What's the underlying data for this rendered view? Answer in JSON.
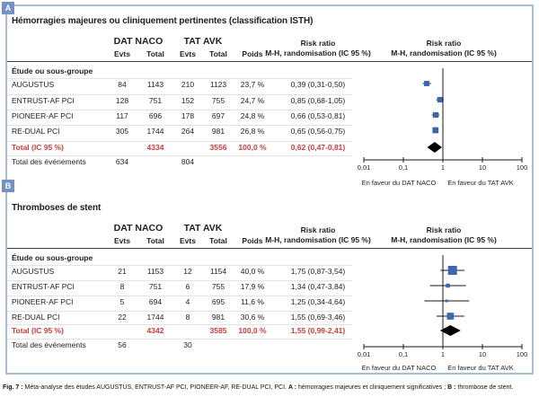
{
  "colors": {
    "accent_red": "#d13b3b",
    "marker_blue": "#3b67b0",
    "frame_blue": "#a9bdd9",
    "badge_blue": "#7391c2",
    "line_black": "#1a1a1a"
  },
  "caption": {
    "fig_label": "Fig. 7 :",
    "intro": "Méta-analyse des études AUGUSTUS, ENTRUST-AF PCI, PIONEER-AF, RE-DUAL PCI, PCI.",
    "a_label": "A :",
    "a_text": "hémorragies majeures et cliniquement significatives ;",
    "b_label": "B :",
    "b_text": "thrombose de stent."
  },
  "chart_data": [
    {
      "type": "forest",
      "badge": "A",
      "title": "Hémorragies majeures ou cliniquement pertinentes (classification ISTH)",
      "columns": {
        "group1": "DAT NACO",
        "group2": "TAT AVK",
        "evts": "Evts",
        "total": "Total",
        "weight": "Poids",
        "rr_line1": "Risk ratio",
        "rr_line2": "M-H, randomisation (IC 95 %)"
      },
      "row_header": "Étude ou sous-groupe",
      "studies": [
        {
          "name": "AUGUSTUS",
          "e1": "84",
          "n1": "1143",
          "e2": "210",
          "n2": "1123",
          "weight": 23.7,
          "weight_label": "23,7 %",
          "rr_label": "0,39 (0,31-0,50)",
          "rr": 0.39,
          "lo": 0.31,
          "hi": 0.5
        },
        {
          "name": "ENTRUST-AF PCI",
          "e1": "128",
          "n1": "751",
          "e2": "152",
          "n2": "755",
          "weight": 24.7,
          "weight_label": "24,7 %",
          "rr_label": "0,85 (0,68-1,05)",
          "rr": 0.85,
          "lo": 0.68,
          "hi": 1.05
        },
        {
          "name": "PIONEER-AF PCI",
          "e1": "117",
          "n1": "696",
          "e2": "178",
          "n2": "697",
          "weight": 24.8,
          "weight_label": "24,8 %",
          "rr_label": "0,66 (0,53-0,81)",
          "rr": 0.66,
          "lo": 0.53,
          "hi": 0.81
        },
        {
          "name": "RE-DUAL PCI",
          "e1": "305",
          "n1": "1744",
          "e2": "264",
          "n2": "981",
          "weight": 26.8,
          "weight_label": "26,8 %",
          "rr_label": "0,65 (0,56-0,75)",
          "rr": 0.65,
          "lo": 0.56,
          "hi": 0.75
        }
      ],
      "total": {
        "label": "Total (IC 95 %)",
        "n1": "4334",
        "n2": "3556",
        "weight_label": "100,0 %",
        "rr_label": "0,62 (0,47-0,81)",
        "rr": 0.62,
        "lo": 0.47,
        "hi": 0.81
      },
      "events": {
        "label": "Total des événements",
        "e1": "634",
        "e2": "804"
      },
      "axis": {
        "scale": "log",
        "range": [
          0.01,
          100
        ],
        "ticks": [
          {
            "label": "0,01",
            "value": 0.01
          },
          {
            "label": "0,1",
            "value": 0.1
          },
          {
            "label": "1",
            "value": 1
          },
          {
            "label": "10",
            "value": 10
          },
          {
            "label": "100",
            "value": 100
          }
        ],
        "left_label": "En faveur du DAT NACO",
        "right_label": "En faveur du TAT AVK"
      }
    },
    {
      "type": "forest",
      "badge": "B",
      "title": "Thromboses de stent",
      "columns": {
        "group1": "DAT NACO",
        "group2": "TAT AVK",
        "evts": "Evts",
        "total": "Total",
        "weight": "Poids",
        "rr_line1": "Risk ratio",
        "rr_line2": "M-H, randomisation (IC 95 %)"
      },
      "row_header": "Étude ou sous-groupe",
      "studies": [
        {
          "name": "AUGUSTUS",
          "e1": "21",
          "n1": "1153",
          "e2": "12",
          "n2": "1154",
          "weight": 40.0,
          "weight_label": "40,0 %",
          "rr_label": "1,75 (0,87-3,54)",
          "rr": 1.75,
          "lo": 0.87,
          "hi": 3.54
        },
        {
          "name": "ENTRUST-AF PCI",
          "e1": "8",
          "n1": "751",
          "e2": "6",
          "n2": "755",
          "weight": 17.9,
          "weight_label": "17,9 %",
          "rr_label": "1,34 (0,47-3,84)",
          "rr": 1.34,
          "lo": 0.47,
          "hi": 3.84
        },
        {
          "name": "PIONEER-AF PCI",
          "e1": "5",
          "n1": "694",
          "e2": "4",
          "n2": "695",
          "weight": 11.6,
          "weight_label": "11,6 %",
          "rr_label": "1,25 (0,34-4,64)",
          "rr": 1.25,
          "lo": 0.34,
          "hi": 4.64
        },
        {
          "name": "RE-DUAL PCI",
          "e1": "22",
          "n1": "1744",
          "e2": "8",
          "n2": "981",
          "weight": 30.6,
          "weight_label": "30,6 %",
          "rr_label": "1,55 (0,69-3,46)",
          "rr": 1.55,
          "lo": 0.69,
          "hi": 3.46
        }
      ],
      "total": {
        "label": "Total (IC 95 %)",
        "n1": "4342",
        "n2": "3585",
        "weight_label": "100,0 %",
        "rr_label": "1,55 (0,99-2,41)",
        "rr": 1.55,
        "lo": 0.99,
        "hi": 2.41
      },
      "events": {
        "label": "Total des événements",
        "e1": "56",
        "e2": "30"
      },
      "axis": {
        "scale": "log",
        "range": [
          0.01,
          100
        ],
        "ticks": [
          {
            "label": "0,01",
            "value": 0.01
          },
          {
            "label": "0,1",
            "value": 0.1
          },
          {
            "label": "1",
            "value": 1
          },
          {
            "label": "10",
            "value": 10
          },
          {
            "label": "100",
            "value": 100
          }
        ],
        "left_label": "En faveur du DAT NACO",
        "right_label": "En faveur du TAT AVK"
      }
    }
  ]
}
